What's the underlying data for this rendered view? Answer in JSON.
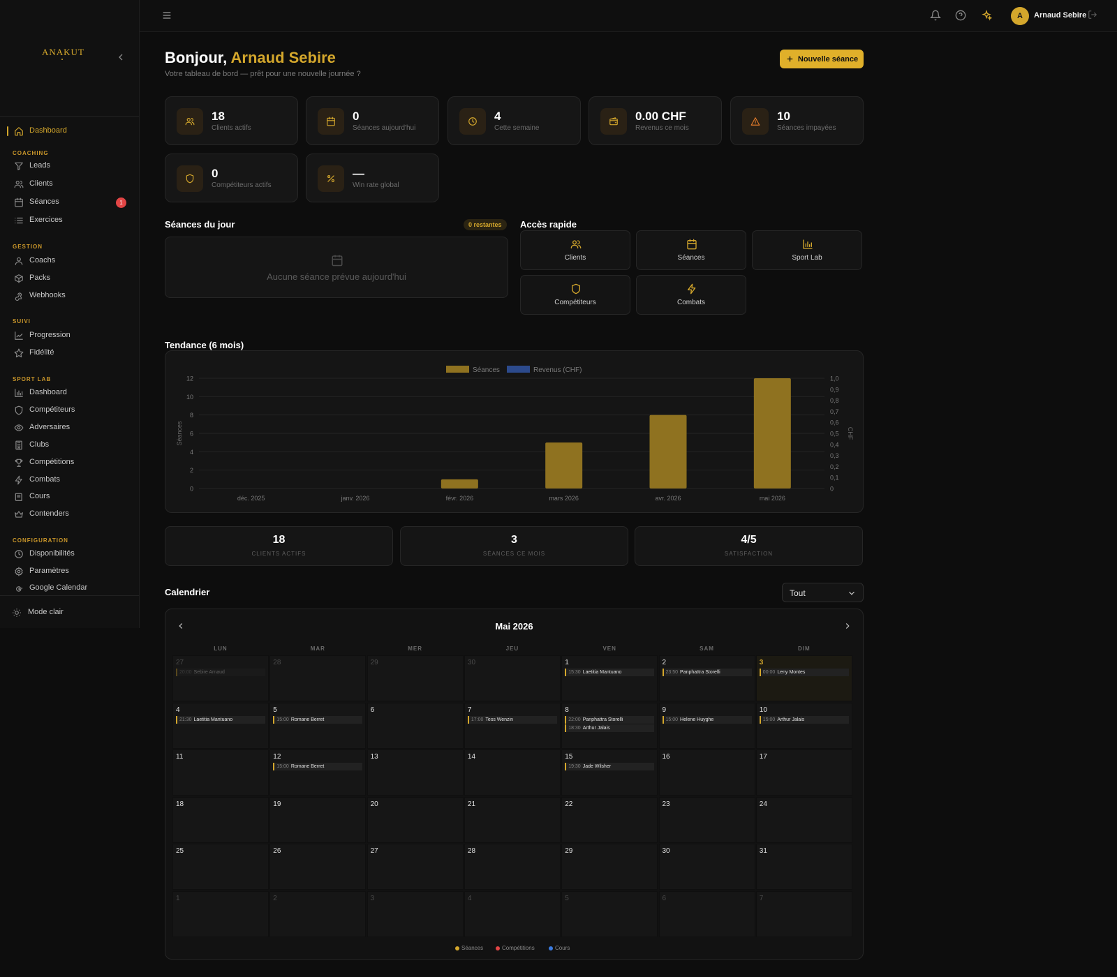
{
  "brand": {
    "logo": "ANAKUT"
  },
  "sidebar": {
    "dashboard": "Dashboard",
    "sections": {
      "coaching": "COACHING",
      "gestion": "GESTION",
      "suivi": "SUIVI",
      "sportlab": "SPORT LAB",
      "config": "CONFIGURATION"
    },
    "coaching": [
      {
        "label": "Leads",
        "icon": "filter-icon"
      },
      {
        "label": "Clients",
        "icon": "users-icon"
      },
      {
        "label": "Séances",
        "icon": "calendar-icon",
        "badge": "1"
      },
      {
        "label": "Exercices",
        "icon": "list-icon"
      }
    ],
    "gestion": [
      {
        "label": "Coachs",
        "icon": "user-icon"
      },
      {
        "label": "Packs",
        "icon": "package-icon"
      },
      {
        "label": "Webhooks",
        "icon": "webhook-icon"
      }
    ],
    "suivi": [
      {
        "label": "Progression",
        "icon": "trend-icon"
      },
      {
        "label": "Fidélité",
        "icon": "star-icon"
      }
    ],
    "sportlab": [
      {
        "label": "Dashboard",
        "icon": "bar-chart-icon"
      },
      {
        "label": "Compétiteurs",
        "icon": "shield-icon"
      },
      {
        "label": "Adversaires",
        "icon": "eye-icon"
      },
      {
        "label": "Clubs",
        "icon": "building-icon"
      },
      {
        "label": "Compétitions",
        "icon": "trophy-icon"
      },
      {
        "label": "Combats",
        "icon": "bolt-icon"
      },
      {
        "label": "Cours",
        "icon": "book-icon"
      },
      {
        "label": "Contenders",
        "icon": "crown-icon"
      }
    ],
    "config": [
      {
        "label": "Disponibilités",
        "icon": "clock-icon"
      },
      {
        "label": "Paramètres",
        "icon": "gear-icon"
      },
      {
        "label": "Google Calendar",
        "icon": "google-icon"
      }
    ],
    "mode": "Mode clair"
  },
  "topbar": {
    "avatar": "A",
    "user": "Arnaud Sebire"
  },
  "header": {
    "greet": "Bonjour, ",
    "name": "Arnaud Sebire",
    "subtitle": "Votre tableau de bord — prêt pour une nouvelle journée ?",
    "new_button": "Nouvelle séance"
  },
  "kpis": [
    {
      "value": "18",
      "label": "Clients actifs",
      "icon": "users-icon"
    },
    {
      "value": "0",
      "label": "Séances aujourd'hui",
      "icon": "calendar-icon"
    },
    {
      "value": "4",
      "label": "Cette semaine",
      "icon": "clock-icon"
    },
    {
      "value": "0.00 CHF",
      "label": "Revenus ce mois",
      "icon": "wallet-icon"
    },
    {
      "value": "10",
      "label": "Séances impayées",
      "icon": "warning-icon"
    },
    {
      "value": "0",
      "label": "Compétiteurs actifs",
      "icon": "shield-icon"
    },
    {
      "value": "—",
      "label": "Win rate global",
      "icon": "percent-icon"
    }
  ],
  "today": {
    "title": "Séances du jour",
    "badge": "0 restantes",
    "empty": "Aucune séance prévue aujourd'hui"
  },
  "quick": {
    "title": "Accès rapide",
    "items": [
      {
        "label": "Clients",
        "icon": "users-icon"
      },
      {
        "label": "Séances",
        "icon": "calendar-icon"
      },
      {
        "label": "Sport Lab",
        "icon": "bar-chart-icon"
      },
      {
        "label": "Compétiteurs",
        "icon": "shield-icon"
      },
      {
        "label": "Combats",
        "icon": "bolt-icon"
      }
    ]
  },
  "trend_title": "Tendance (6 mois)",
  "chart_data": {
    "type": "bar",
    "categories": [
      "déc. 2025",
      "janv. 2026",
      "févr. 2026",
      "mars 2026",
      "avr. 2026",
      "mai 2026"
    ],
    "series": [
      {
        "name": "Séances",
        "color": "#8f7220",
        "values": [
          0,
          0,
          1,
          5,
          8,
          12
        ]
      },
      {
        "name": "Revenus (CHF)",
        "color": "#2c4a8c",
        "values": [
          0,
          0,
          0,
          0,
          0,
          0
        ]
      }
    ],
    "ylabel": "Séances",
    "y2label": "CHF",
    "ylim": [
      0,
      12
    ],
    "y2lim": [
      0,
      1
    ],
    "yticks": [
      "0",
      "2",
      "4",
      "6",
      "8",
      "10",
      "12"
    ],
    "y2ticks": [
      "0",
      "0,1",
      "0,2",
      "0,3",
      "0,4",
      "0,5",
      "0,6",
      "0,7",
      "0,8",
      "0,9",
      "1,0"
    ],
    "grid": true,
    "legend": "top"
  },
  "stats": [
    {
      "value": "18",
      "label": "CLIENTS ACTIFS"
    },
    {
      "value": "3",
      "label": "SÉANCES CE MOIS"
    },
    {
      "value": "4/5",
      "label": "SATISFACTION"
    }
  ],
  "calendar": {
    "title": "Calendrier",
    "filter": "Tout",
    "month": "Mai 2026",
    "dow": [
      "LUN",
      "MAR",
      "MER",
      "JEU",
      "VEN",
      "SAM",
      "DIM"
    ],
    "days": [
      {
        "d": "27",
        "m": 1,
        "ev": [
          [
            "20:00",
            "Sebire Arnaud"
          ]
        ]
      },
      {
        "d": "28",
        "m": 1
      },
      {
        "d": "29",
        "m": 1
      },
      {
        "d": "30",
        "m": 1
      },
      {
        "d": "1",
        "ev": [
          [
            "15:30",
            "Laetitia Mantuano"
          ]
        ]
      },
      {
        "d": "2",
        "ev": [
          [
            "23:50",
            "Panphattra Storelli"
          ]
        ]
      },
      {
        "d": "3",
        "t": 1,
        "ev": [
          [
            "00:00",
            "Leny Montes"
          ]
        ]
      },
      {
        "d": "4",
        "ev": [
          [
            "21:30",
            "Laetitia Mantuano"
          ]
        ]
      },
      {
        "d": "5",
        "ev": [
          [
            "15:00",
            "Romane Berret"
          ]
        ]
      },
      {
        "d": "6"
      },
      {
        "d": "7",
        "ev": [
          [
            "17:00",
            "Tess Wenzin"
          ]
        ]
      },
      {
        "d": "8",
        "ev": [
          [
            "22:00",
            "Panphattra Storelli"
          ],
          [
            "18:30",
            "Arthur Jalais"
          ]
        ]
      },
      {
        "d": "9",
        "ev": [
          [
            "15:00",
            "Helene Huyghe"
          ]
        ]
      },
      {
        "d": "10",
        "ev": [
          [
            "15:00",
            "Arthur Jalais"
          ]
        ]
      },
      {
        "d": "11"
      },
      {
        "d": "12",
        "ev": [
          [
            "15:00",
            "Romane Berret"
          ]
        ]
      },
      {
        "d": "13"
      },
      {
        "d": "14"
      },
      {
        "d": "15",
        "ev": [
          [
            "19:30",
            "Jade Wilsher"
          ]
        ]
      },
      {
        "d": "16"
      },
      {
        "d": "17"
      },
      {
        "d": "18"
      },
      {
        "d": "19"
      },
      {
        "d": "20"
      },
      {
        "d": "21"
      },
      {
        "d": "22"
      },
      {
        "d": "23"
      },
      {
        "d": "24"
      },
      {
        "d": "25"
      },
      {
        "d": "26"
      },
      {
        "d": "27"
      },
      {
        "d": "28"
      },
      {
        "d": "29"
      },
      {
        "d": "30"
      },
      {
        "d": "31"
      },
      {
        "d": "1",
        "m": 1
      },
      {
        "d": "2",
        "m": 1
      },
      {
        "d": "3",
        "m": 1
      },
      {
        "d": "4",
        "m": 1
      },
      {
        "d": "5",
        "m": 1
      },
      {
        "d": "6",
        "m": 1
      },
      {
        "d": "7",
        "m": 1
      }
    ],
    "legend": [
      {
        "label": "Séances",
        "color": "#d4a72c"
      },
      {
        "label": "Compétitions",
        "color": "#e24545"
      },
      {
        "label": "Cours",
        "color": "#3b7be0"
      }
    ]
  }
}
